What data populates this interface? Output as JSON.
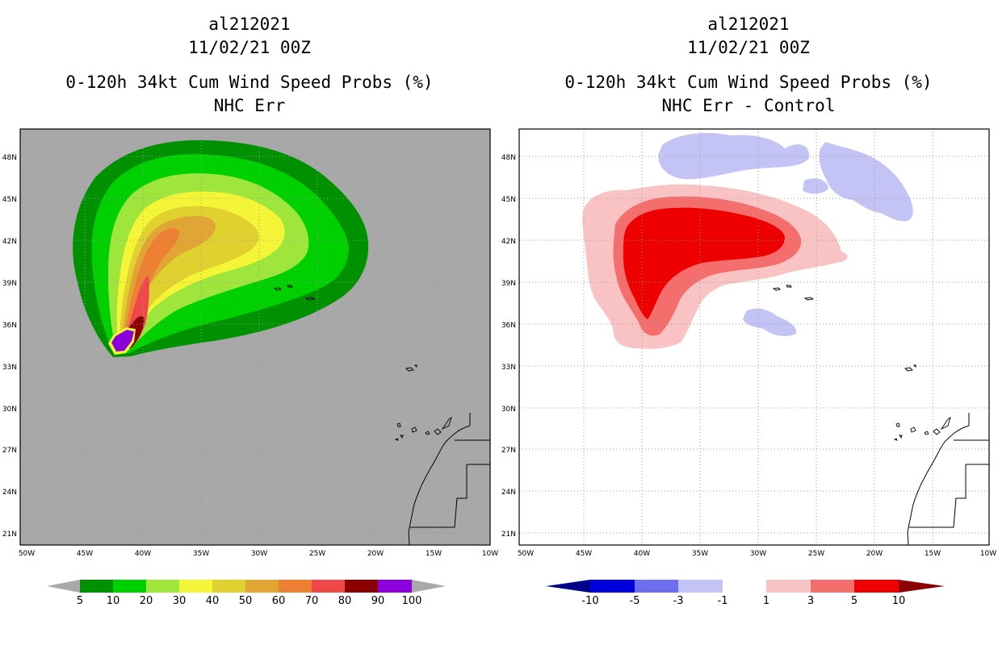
{
  "left_panel": {
    "title_line1": "al212021",
    "title_line2": "11/02/21 00Z",
    "title_line3": "0-120h 34kt Cum Wind Speed Probs (%)",
    "title_line4": "NHC Err",
    "colorbar": {
      "labels": [
        "5",
        "10",
        "20",
        "30",
        "40",
        "50",
        "60",
        "70",
        "80",
        "90",
        "100"
      ],
      "colors": [
        "#009100",
        "#00d000",
        "#9fe63c",
        "#f5f537",
        "#e0d030",
        "#e1a533",
        "#ed8033",
        "#f04848",
        "#8b0000",
        "#8c00dc"
      ],
      "extend_color": "#a9a9a9"
    }
  },
  "right_panel": {
    "title_line1": "al212021",
    "title_line2": "11/02/21 00Z",
    "title_line3": "0-120h 34kt Cum Wind Speed Probs (%)",
    "title_line4": "NHC Err - Control",
    "colorbar": {
      "labels": [
        "-10",
        "-5",
        "-3",
        "-1",
        "1",
        "3",
        "5",
        "10"
      ],
      "colors": [
        "#0000dc",
        "#6e6ef0",
        "#c3c3f5",
        "#ffffff",
        "#f9c3c3",
        "#f56e6e",
        "#ee0000"
      ],
      "extend_low": "#00008b",
      "extend_high": "#8b0000"
    }
  },
  "map_axes": {
    "lon_labels": [
      "50W",
      "45W",
      "40W",
      "35W",
      "30W",
      "25W",
      "20W",
      "15W",
      "10W"
    ],
    "lat_labels": [
      "48N",
      "45N",
      "42N",
      "39N",
      "36N",
      "33N",
      "30N",
      "27N",
      "24N",
      "21N"
    ],
    "lon_range": [
      -50,
      -10
    ],
    "lat_range": [
      20,
      50
    ]
  },
  "colors": {
    "ocean_left": "#a8a8a8",
    "grid": "#9a9a9a",
    "coast": "#000000"
  }
}
